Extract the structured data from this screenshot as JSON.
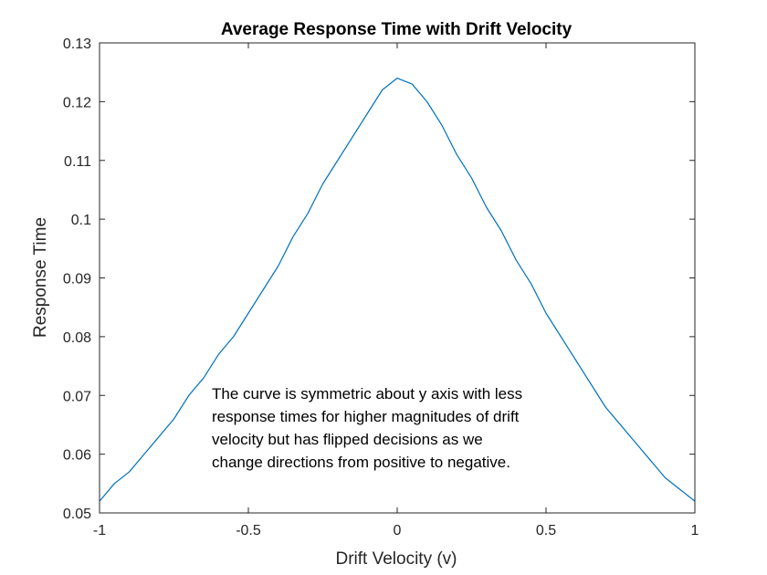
{
  "chart_data": {
    "type": "line",
    "title": "Average Response Time with Drift Velocity",
    "xlabel": "Drift Velocity (v)",
    "ylabel": "Response Time",
    "xlim": [
      -1,
      1
    ],
    "ylim": [
      0.05,
      0.13
    ],
    "x_ticks": [
      -1,
      -0.5,
      0,
      0.5,
      1
    ],
    "x_tick_labels": [
      "-1",
      "-0.5",
      "0",
      "0.5",
      "1"
    ],
    "y_ticks": [
      0.05,
      0.06,
      0.07,
      0.08,
      0.09,
      0.1,
      0.11,
      0.12,
      0.13
    ],
    "y_tick_labels": [
      "0.05",
      "0.06",
      "0.07",
      "0.08",
      "0.09",
      "0.1",
      "0.11",
      "0.12",
      "0.13"
    ],
    "grid": false,
    "legend": "none",
    "colors": {
      "series": "#0072bd",
      "axes": "#262626"
    },
    "annotation": {
      "lines": [
        "The curve is symmetric about y axis with less",
        "response times for higher magnitudes of drift",
        "velocity but has flipped decisions as we",
        "change directions from positive to negative."
      ]
    },
    "series": [
      {
        "x": [
          -1.0,
          -0.95,
          -0.9,
          -0.85,
          -0.8,
          -0.75,
          -0.7,
          -0.65,
          -0.6,
          -0.55,
          -0.5,
          -0.45,
          -0.4,
          -0.35,
          -0.3,
          -0.25,
          -0.2,
          -0.15,
          -0.1,
          -0.05,
          0.0,
          0.05,
          0.1,
          0.15,
          0.2,
          0.25,
          0.3,
          0.35,
          0.4,
          0.45,
          0.5,
          0.55,
          0.6,
          0.65,
          0.7,
          0.75,
          0.8,
          0.85,
          0.9,
          0.95,
          1.0
        ],
        "y": [
          0.052,
          0.055,
          0.057,
          0.06,
          0.063,
          0.066,
          0.07,
          0.073,
          0.077,
          0.08,
          0.084,
          0.088,
          0.092,
          0.097,
          0.101,
          0.106,
          0.11,
          0.114,
          0.118,
          0.122,
          0.124,
          0.123,
          0.12,
          0.116,
          0.111,
          0.107,
          0.102,
          0.098,
          0.093,
          0.089,
          0.084,
          0.08,
          0.076,
          0.072,
          0.068,
          0.065,
          0.062,
          0.059,
          0.056,
          0.054,
          0.052
        ]
      }
    ]
  }
}
